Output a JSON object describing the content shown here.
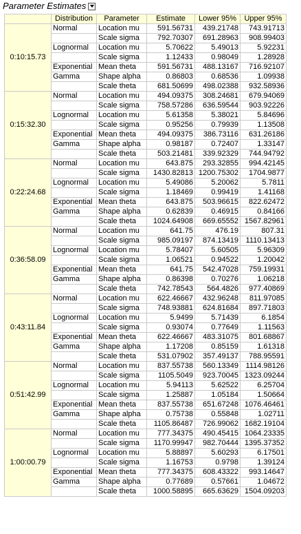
{
  "title": "Parameter Estimates",
  "headers": [
    "Distribution",
    "Parameter",
    "Estimate",
    "Lower 95%",
    "Upper 95%"
  ],
  "groups": [
    {
      "time": "0:10:15.73",
      "rows": [
        [
          "Normal",
          "Location mu",
          "591.56731",
          "439.21748",
          "743.91713"
        ],
        [
          "",
          "Scale sigma",
          "792.70307",
          "691.28963",
          "908.99403"
        ],
        [
          "Lognormal",
          "Location mu",
          "5.70622",
          "5.49013",
          "5.92231"
        ],
        [
          "",
          "Scale sigma",
          "1.12433",
          "0.98049",
          "1.28928"
        ],
        [
          "Exponential",
          "Mean theta",
          "591.56731",
          "488.13167",
          "716.92107"
        ],
        [
          "Gamma",
          "Shape alpha",
          "0.86803",
          "0.68536",
          "1.09938"
        ],
        [
          "",
          "Scale theta",
          "681.50699",
          "498.02388",
          "932.58936"
        ]
      ]
    },
    {
      "time": "0:15:32.30",
      "rows": [
        [
          "Normal",
          "Location mu",
          "494.09375",
          "308.24681",
          "679.94069"
        ],
        [
          "",
          "Scale sigma",
          "758.57286",
          "636.59544",
          "903.92226"
        ],
        [
          "Lognormal",
          "Location mu",
          "5.61358",
          "5.38021",
          "5.84696"
        ],
        [
          "",
          "Scale sigma",
          "0.95256",
          "0.79939",
          "1.13508"
        ],
        [
          "Exponential",
          "Mean theta",
          "494.09375",
          "386.73116",
          "631.26186"
        ],
        [
          "Gamma",
          "Shape alpha",
          "0.98187",
          "0.72407",
          "1.33147"
        ],
        [
          "",
          "Scale theta",
          "503.21481",
          "339.92329",
          "744.94792"
        ]
      ]
    },
    {
      "time": "0:22:24.68",
      "rows": [
        [
          "Normal",
          "Location mu",
          "643.875",
          "293.32855",
          "994.42145"
        ],
        [
          "",
          "Scale sigma",
          "1430.82813",
          "1200.75302",
          "1704.9877"
        ],
        [
          "Lognormal",
          "Location mu",
          "5.49086",
          "5.20062",
          "5.7811"
        ],
        [
          "",
          "Scale sigma",
          "1.18469",
          "0.99419",
          "1.41168"
        ],
        [
          "Exponential",
          "Mean theta",
          "643.875",
          "503.96615",
          "822.62472"
        ],
        [
          "Gamma",
          "Shape alpha",
          "0.62839",
          "0.46915",
          "0.84166"
        ],
        [
          "",
          "Scale theta",
          "1024.64908",
          "669.65552",
          "1567.82961"
        ]
      ]
    },
    {
      "time": "0:36:58.09",
      "rows": [
        [
          "Normal",
          "Location mu",
          "641.75",
          "476.19",
          "807.31"
        ],
        [
          "",
          "Scale sigma",
          "985.09197",
          "874.13419",
          "1110.13413"
        ],
        [
          "Lognormal",
          "Location mu",
          "5.78407",
          "5.60505",
          "5.96309"
        ],
        [
          "",
          "Scale sigma",
          "1.06521",
          "0.94522",
          "1.20042"
        ],
        [
          "Exponential",
          "Mean theta",
          "641.75",
          "542.47028",
          "759.19931"
        ],
        [
          "Gamma",
          "Shape alpha",
          "0.86398",
          "0.70276",
          "1.06218"
        ],
        [
          "",
          "Scale theta",
          "742.78543",
          "564.4826",
          "977.40869"
        ]
      ]
    },
    {
      "time": "0:43:11.84",
      "rows": [
        [
          "Normal",
          "Location mu",
          "622.46667",
          "432.96248",
          "811.97085"
        ],
        [
          "",
          "Scale sigma",
          "748.93881",
          "624.81684",
          "897.71803"
        ],
        [
          "Lognormal",
          "Location mu",
          "5.9499",
          "5.71439",
          "6.1854"
        ],
        [
          "",
          "Scale sigma",
          "0.93074",
          "0.77649",
          "1.11563"
        ],
        [
          "Exponential",
          "Mean theta",
          "622.46667",
          "483.31075",
          "801.68867"
        ],
        [
          "Gamma",
          "Shape alpha",
          "1.17208",
          "0.85159",
          "1.61318"
        ],
        [
          "",
          "Scale theta",
          "531.07902",
          "357.49137",
          "788.95591"
        ]
      ]
    },
    {
      "time": "0:51:42.99",
      "rows": [
        [
          "Normal",
          "Location mu",
          "837.55738",
          "560.13349",
          "1114.98126"
        ],
        [
          "",
          "Scale sigma",
          "1105.5049",
          "923.70045",
          "1323.09244"
        ],
        [
          "Lognormal",
          "Location mu",
          "5.94113",
          "5.62522",
          "6.25704"
        ],
        [
          "",
          "Scale sigma",
          "1.25887",
          "1.05184",
          "1.50664"
        ],
        [
          "Exponential",
          "Mean theta",
          "837.55738",
          "651.67248",
          "1076.46461"
        ],
        [
          "Gamma",
          "Shape alpha",
          "0.75738",
          "0.55848",
          "1.02711"
        ],
        [
          "",
          "Scale theta",
          "1105.86487",
          "726.99062",
          "1682.19104"
        ]
      ]
    },
    {
      "time": "1:00:00.79",
      "rows": [
        [
          "Normal",
          "Location mu",
          "777.34375",
          "490.45415",
          "1064.23335"
        ],
        [
          "",
          "Scale sigma",
          "1170.99947",
          "982.70444",
          "1395.37352"
        ],
        [
          "Lognormal",
          "Location mu",
          "5.88897",
          "5.60293",
          "6.17501"
        ],
        [
          "",
          "Scale sigma",
          "1.16753",
          "0.9798",
          "1.39124"
        ],
        [
          "Exponential",
          "Mean theta",
          "777.34375",
          "608.43322",
          "993.14647"
        ],
        [
          "Gamma",
          "Shape alpha",
          "0.77689",
          "0.57661",
          "1.04672"
        ],
        [
          "",
          "Scale theta",
          "1000.58895",
          "665.63629",
          "1504.09203"
        ]
      ]
    }
  ]
}
